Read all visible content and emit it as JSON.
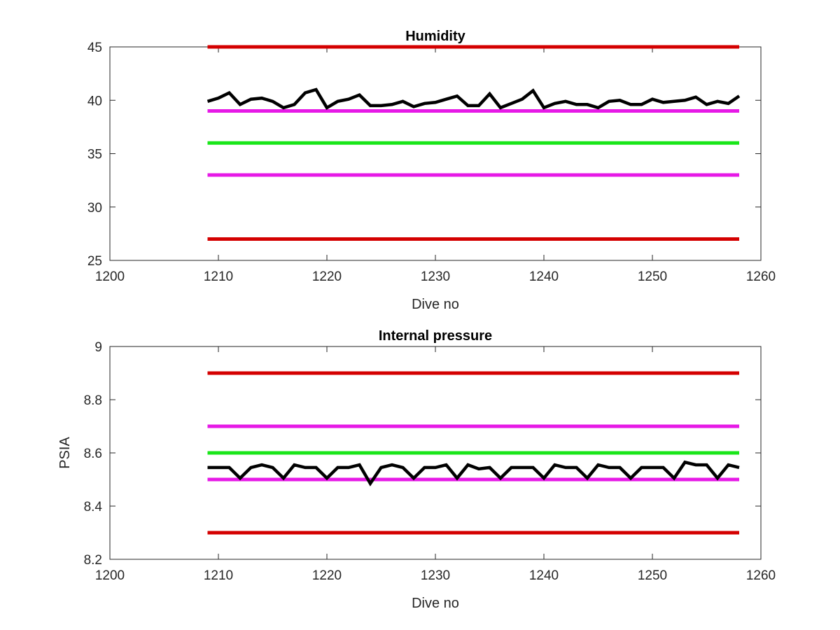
{
  "chart_data": [
    {
      "type": "line",
      "title": "Humidity",
      "xlabel": "Dive no",
      "ylabel": "",
      "xlim": [
        1200,
        1260
      ],
      "ylim": [
        25,
        45
      ],
      "x_ticks": [
        "1200",
        "1210",
        "1220",
        "1230",
        "1240",
        "1250",
        "1260"
      ],
      "y_ticks": [
        "25",
        "30",
        "35",
        "40",
        "45"
      ],
      "grid": false,
      "reference_lines": [
        {
          "y": 45,
          "x_range": [
            1209,
            1258
          ],
          "color": "#d40000"
        },
        {
          "y": 39,
          "x_range": [
            1209,
            1258
          ],
          "color": "#e619e6"
        },
        {
          "y": 36,
          "x_range": [
            1209,
            1258
          ],
          "color": "#19e619"
        },
        {
          "y": 33,
          "x_range": [
            1209,
            1258
          ],
          "color": "#e619e6"
        },
        {
          "y": 27,
          "x_range": [
            1209,
            1258
          ],
          "color": "#d40000"
        }
      ],
      "series": [
        {
          "color": "#000000",
          "x": [
            1209,
            1210,
            1211,
            1212,
            1213,
            1214,
            1215,
            1216,
            1217,
            1218,
            1219,
            1220,
            1221,
            1222,
            1223,
            1224,
            1225,
            1226,
            1227,
            1228,
            1229,
            1230,
            1231,
            1232,
            1233,
            1234,
            1235,
            1236,
            1237,
            1238,
            1239,
            1240,
            1241,
            1242,
            1243,
            1244,
            1245,
            1246,
            1247,
            1248,
            1249,
            1250,
            1251,
            1252,
            1253,
            1254,
            1255,
            1256,
            1257,
            1258
          ],
          "values": [
            39.9,
            40.2,
            40.7,
            39.6,
            40.1,
            40.2,
            39.9,
            39.3,
            39.6,
            40.7,
            41.0,
            39.3,
            39.9,
            40.1,
            40.5,
            39.5,
            39.5,
            39.6,
            39.9,
            39.4,
            39.7,
            39.8,
            40.1,
            40.4,
            39.5,
            39.5,
            40.6,
            39.3,
            39.7,
            40.1,
            40.9,
            39.3,
            39.7,
            39.9,
            39.6,
            39.6,
            39.3,
            39.9,
            40.0,
            39.6,
            39.6,
            40.1,
            39.8,
            39.9,
            40.0,
            40.3,
            39.6,
            39.9,
            39.7,
            40.4
          ]
        }
      ]
    },
    {
      "type": "line",
      "title": "Internal pressure",
      "xlabel": "Dive no",
      "ylabel": "PSIA",
      "xlim": [
        1200,
        1260
      ],
      "ylim": [
        8.2,
        9.0
      ],
      "x_ticks": [
        "1200",
        "1210",
        "1220",
        "1230",
        "1240",
        "1250",
        "1260"
      ],
      "y_ticks": [
        "8.2",
        "8.4",
        "8.6",
        "8.8",
        "9"
      ],
      "grid": false,
      "reference_lines": [
        {
          "y": 8.9,
          "x_range": [
            1209,
            1258
          ],
          "color": "#d40000"
        },
        {
          "y": 8.7,
          "x_range": [
            1209,
            1258
          ],
          "color": "#e619e6"
        },
        {
          "y": 8.6,
          "x_range": [
            1209,
            1258
          ],
          "color": "#19e619"
        },
        {
          "y": 8.5,
          "x_range": [
            1209,
            1258
          ],
          "color": "#e619e6"
        },
        {
          "y": 8.3,
          "x_range": [
            1209,
            1258
          ],
          "color": "#d40000"
        }
      ],
      "series": [
        {
          "color": "#000000",
          "x": [
            1209,
            1210,
            1211,
            1212,
            1213,
            1214,
            1215,
            1216,
            1217,
            1218,
            1219,
            1220,
            1221,
            1222,
            1223,
            1224,
            1225,
            1226,
            1227,
            1228,
            1229,
            1230,
            1231,
            1232,
            1233,
            1234,
            1235,
            1236,
            1237,
            1238,
            1239,
            1240,
            1241,
            1242,
            1243,
            1244,
            1245,
            1246,
            1247,
            1248,
            1249,
            1250,
            1251,
            1252,
            1253,
            1254,
            1255,
            1256,
            1257,
            1258
          ],
          "values": [
            8.545,
            8.545,
            8.545,
            8.505,
            8.545,
            8.555,
            8.545,
            8.505,
            8.555,
            8.545,
            8.545,
            8.505,
            8.545,
            8.545,
            8.555,
            8.485,
            8.545,
            8.555,
            8.545,
            8.505,
            8.545,
            8.545,
            8.555,
            8.505,
            8.555,
            8.54,
            8.545,
            8.505,
            8.545,
            8.545,
            8.545,
            8.505,
            8.555,
            8.545,
            8.545,
            8.505,
            8.555,
            8.545,
            8.545,
            8.505,
            8.545,
            8.545,
            8.545,
            8.505,
            8.565,
            8.555,
            8.555,
            8.505,
            8.555,
            8.545
          ]
        }
      ]
    }
  ]
}
